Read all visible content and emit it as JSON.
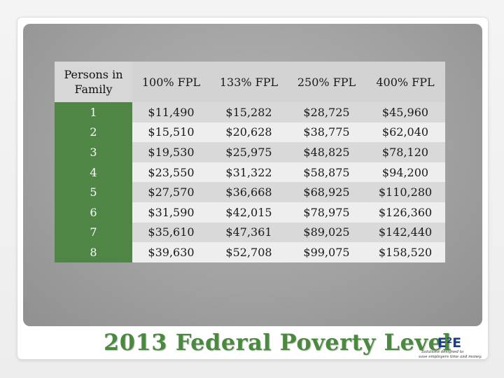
{
  "table": {
    "header": [
      "Persons in Family",
      "100% FPL",
      "133% FPL",
      "250% FPL",
      "400% FPL"
    ],
    "rows": [
      [
        "1",
        "$11,490",
        "$15,282",
        "$28,725",
        "$45,960"
      ],
      [
        "2",
        "$15,510",
        "$20,628",
        "$38,775",
        "$62,040"
      ],
      [
        "3",
        "$19,530",
        "$25,975",
        "$48,825",
        "$78,120"
      ],
      [
        "4",
        "$23,550",
        "$31,322",
        "$58,875",
        "$94,200"
      ],
      [
        "5",
        "$27,570",
        "$36,668",
        "$68,925",
        "$110,280"
      ],
      [
        "6",
        "$31,590",
        "$42,015",
        "$78,975",
        "$126,360"
      ],
      [
        "7",
        "$35,610",
        "$47,361",
        "$89,025",
        "$142,440"
      ],
      [
        "8",
        "$39,630",
        "$52,708",
        "$99,075",
        "$158,520"
      ]
    ]
  },
  "slide_title": "2013 Federal Poverty Level",
  "logo": {
    "mark": "E²E",
    "tagline_1": "Solutions designed to",
    "tagline_2": "save employers time and money."
  },
  "colors": {
    "row_header_green": "#4f8646",
    "title_green": "#4a8a3e",
    "logo_blue": "#1f3f7a"
  }
}
